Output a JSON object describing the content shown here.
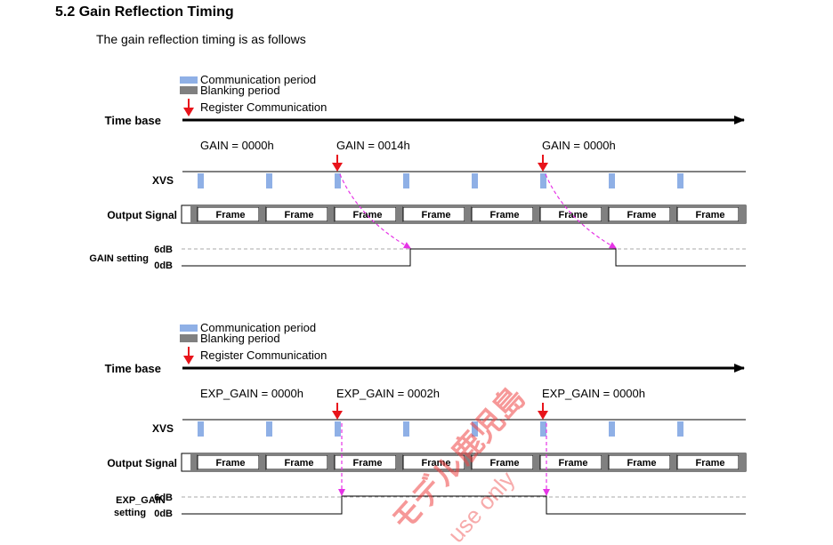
{
  "section": {
    "heading": "5.2 Gain Reflection Timing",
    "intro": "The gain reflection timing is as follows"
  },
  "colors": {
    "communication": "#8fb0e6",
    "blanking": "#808080",
    "arrow": "#e8141b",
    "reflection": "#e633e6",
    "watermark": "#ee4444"
  },
  "diagrams": [
    {
      "legend": {
        "communication": "Communication period",
        "blanking": "Blanking  period",
        "register": "Register Communication"
      },
      "labels": {
        "time_base": "Time base",
        "xvs": "XVS",
        "output_signal": "Output Signal",
        "setting_line1": "GAIN setting",
        "setting_line2": "",
        "high": "6dB",
        "low": "0dB"
      },
      "annotations": [
        "GAIN = 0000h",
        "GAIN = 0014h",
        "GAIN = 0000h"
      ],
      "frames": [
        "Frame",
        "Frame",
        "Frame",
        "Frame",
        "Frame",
        "Frame",
        "Frame",
        "Frame"
      ]
    },
    {
      "legend": {
        "communication": "Communication period",
        "blanking": "Blanking  period",
        "register": "Register Communication"
      },
      "labels": {
        "time_base": "Time base",
        "xvs": "XVS",
        "output_signal": "Output Signal",
        "setting_line1": "EXP_GAIN",
        "setting_line2": "setting",
        "high": "6dB",
        "low": "0dB"
      },
      "annotations": [
        "EXP_GAIN = 0000h",
        "EXP_GAIN = 0002h",
        "EXP_GAIN = 0000h"
      ],
      "frames": [
        "Frame",
        "Frame",
        "Frame",
        "Frame",
        "Frame",
        "Frame",
        "Frame",
        "Frame"
      ]
    }
  ],
  "watermark": {
    "text": "モデル鹿児島",
    "subtext": "use only"
  }
}
